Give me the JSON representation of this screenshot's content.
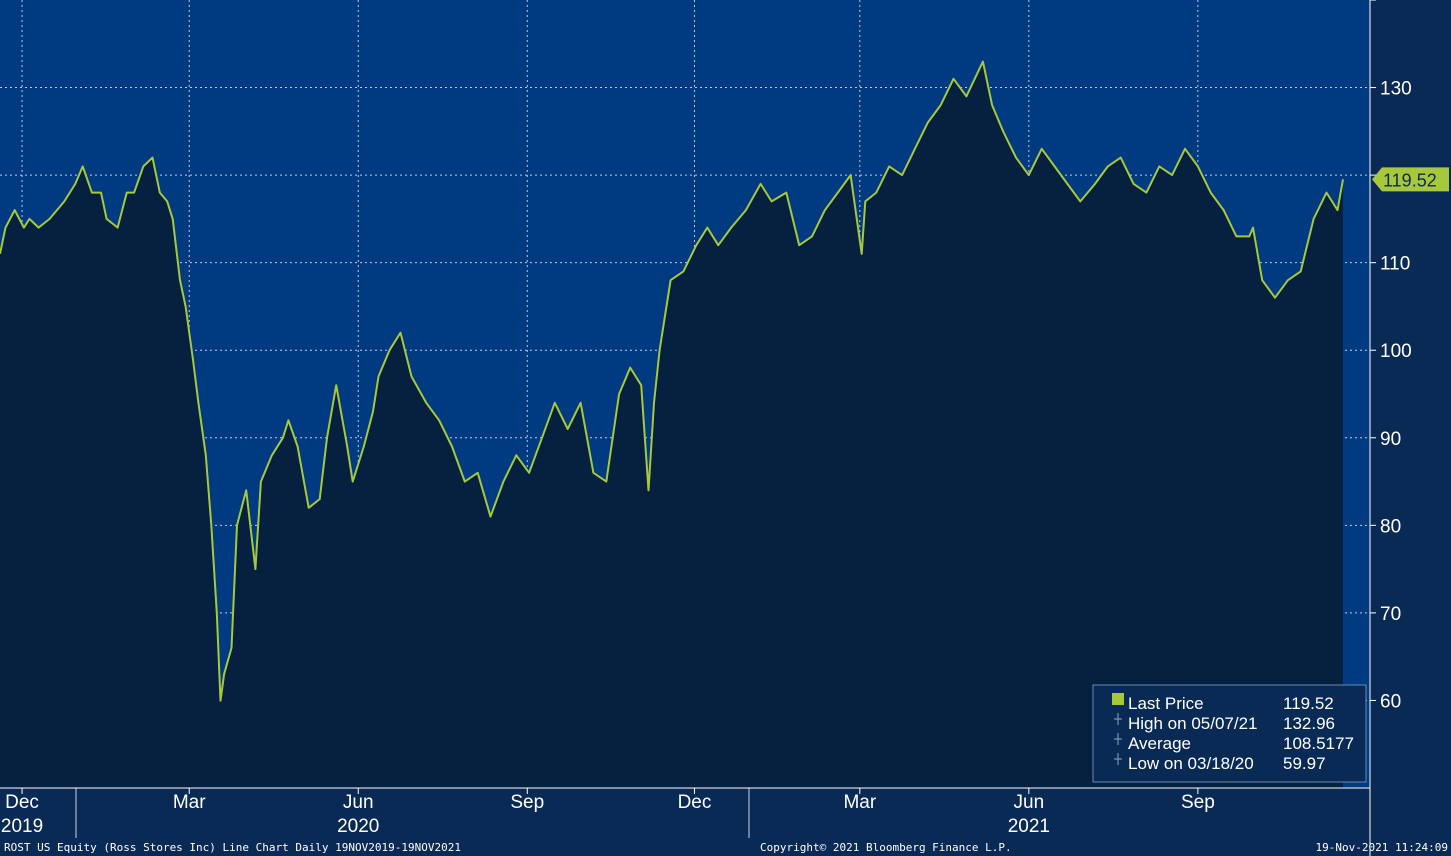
{
  "chart_data": {
    "type": "area",
    "title": "",
    "xlabel": "",
    "ylabel": "",
    "ylim": [
      50,
      140
    ],
    "yticks": [
      60,
      70,
      80,
      90,
      100,
      110,
      120,
      130
    ],
    "grid": true,
    "legend_position": "bottom-right",
    "x_tick_labels": [
      "Dec",
      "Mar",
      "Jun",
      "Sep",
      "Dec",
      "Mar",
      "Jun",
      "Sep"
    ],
    "x_tick_dates": [
      "2019-12-01",
      "2020-03-01",
      "2020-06-01",
      "2020-09-01",
      "2020-12-01",
      "2021-03-01",
      "2021-06-01",
      "2021-09-01"
    ],
    "year_labels": [
      {
        "label": "2019",
        "date": "2019-12-01"
      },
      {
        "label": "2020",
        "date": "2020-06-01"
      },
      {
        "label": "2021",
        "date": "2021-06-01"
      }
    ],
    "series": [
      {
        "name": "Last Price",
        "color": "#a8c83c",
        "x": [
          "2019-11-19",
          "2019-11-22",
          "2019-11-27",
          "2019-12-02",
          "2019-12-05",
          "2019-12-10",
          "2019-12-16",
          "2019-12-20",
          "2019-12-24",
          "2019-12-30",
          "2020-01-03",
          "2020-01-08",
          "2020-01-13",
          "2020-01-16",
          "2020-01-22",
          "2020-01-27",
          "2020-01-31",
          "2020-02-05",
          "2020-02-10",
          "2020-02-14",
          "2020-02-18",
          "2020-02-21",
          "2020-02-25",
          "2020-02-28",
          "2020-03-03",
          "2020-03-06",
          "2020-03-10",
          "2020-03-13",
          "2020-03-16",
          "2020-03-18",
          "2020-03-20",
          "2020-03-24",
          "2020-03-27",
          "2020-04-01",
          "2020-04-06",
          "2020-04-09",
          "2020-04-15",
          "2020-04-21",
          "2020-04-24",
          "2020-04-29",
          "2020-05-05",
          "2020-05-11",
          "2020-05-15",
          "2020-05-20",
          "2020-05-26",
          "2020-05-29",
          "2020-06-04",
          "2020-06-09",
          "2020-06-12",
          "2020-06-18",
          "2020-06-24",
          "2020-06-30",
          "2020-07-08",
          "2020-07-15",
          "2020-07-22",
          "2020-07-29",
          "2020-08-05",
          "2020-08-12",
          "2020-08-19",
          "2020-08-26",
          "2020-09-02",
          "2020-09-09",
          "2020-09-16",
          "2020-09-23",
          "2020-09-30",
          "2020-10-07",
          "2020-10-14",
          "2020-10-21",
          "2020-10-27",
          "2020-11-02",
          "2020-11-06",
          "2020-11-09",
          "2020-11-12",
          "2020-11-18",
          "2020-11-25",
          "2020-12-02",
          "2020-12-08",
          "2020-12-14",
          "2020-12-21",
          "2020-12-29",
          "2021-01-06",
          "2021-01-12",
          "2021-01-20",
          "2021-01-27",
          "2021-02-03",
          "2021-02-10",
          "2021-02-17",
          "2021-02-24",
          "2021-03-02",
          "2021-03-04",
          "2021-03-10",
          "2021-03-17",
          "2021-03-24",
          "2021-03-31",
          "2021-04-07",
          "2021-04-14",
          "2021-04-21",
          "2021-04-28",
          "2021-05-07",
          "2021-05-12",
          "2021-05-18",
          "2021-05-25",
          "2021-06-01",
          "2021-06-08",
          "2021-06-15",
          "2021-06-22",
          "2021-06-29",
          "2021-07-07",
          "2021-07-14",
          "2021-07-21",
          "2021-07-28",
          "2021-08-04",
          "2021-08-11",
          "2021-08-18",
          "2021-08-25",
          "2021-09-01",
          "2021-09-08",
          "2021-09-15",
          "2021-09-22",
          "2021-09-29",
          "2021-10-01",
          "2021-10-06",
          "2021-10-13",
          "2021-10-20",
          "2021-10-27",
          "2021-11-03",
          "2021-11-10",
          "2021-11-16",
          "2021-11-19"
        ],
        "values": [
          111,
          114,
          116,
          114,
          115,
          114,
          115,
          116,
          117,
          119,
          121,
          118,
          118,
          115,
          114,
          118,
          118,
          121,
          122,
          118,
          117,
          115,
          108,
          105,
          99,
          94,
          88,
          80,
          70,
          59.97,
          63,
          66,
          80,
          84,
          75,
          85,
          88,
          90,
          92,
          89,
          82,
          83,
          90,
          96,
          89,
          85,
          89,
          93,
          97,
          100,
          102,
          97,
          94,
          92,
          89,
          85,
          86,
          81,
          85,
          88,
          86,
          90,
          94,
          91,
          94,
          86,
          85,
          95,
          98,
          96,
          84,
          94,
          100,
          108,
          109,
          112,
          114,
          112,
          114,
          116,
          119,
          117,
          118,
          112,
          113,
          116,
          118,
          120,
          111,
          117,
          118,
          121,
          120,
          123,
          126,
          128,
          131,
          129,
          132.96,
          128,
          125,
          122,
          120,
          123,
          121,
          119,
          117,
          119,
          121,
          122,
          119,
          118,
          121,
          120,
          123,
          121,
          118,
          116,
          113,
          113,
          114,
          108,
          106,
          108,
          109,
          115,
          118,
          116,
          119.52
        ]
      }
    ],
    "last_value_label": "119.52",
    "legend": [
      {
        "label": "Last Price",
        "value": "119.52",
        "symbol": "square"
      },
      {
        "label": "High on 05/07/21",
        "value": "132.96",
        "symbol": "high"
      },
      {
        "label": "Average",
        "value": "108.5177",
        "symbol": "avg"
      },
      {
        "label": "Low on 03/18/20",
        "value": "59.97",
        "symbol": "low"
      }
    ]
  },
  "footer": {
    "left": "ROST US Equity (Ross Stores Inc) Line Chart  Daily 19NOV2019-19NOV2021",
    "center": "Copyright© 2021 Bloomberg Finance L.P.",
    "right": "19-Nov-2021 11:24:09"
  },
  "colors": {
    "background": "#0a2a56",
    "plot_background": "#003a80",
    "area_fill": "#06203f",
    "line": "#a8c83c",
    "grid": "#ffffff",
    "text": "#ffffff"
  }
}
